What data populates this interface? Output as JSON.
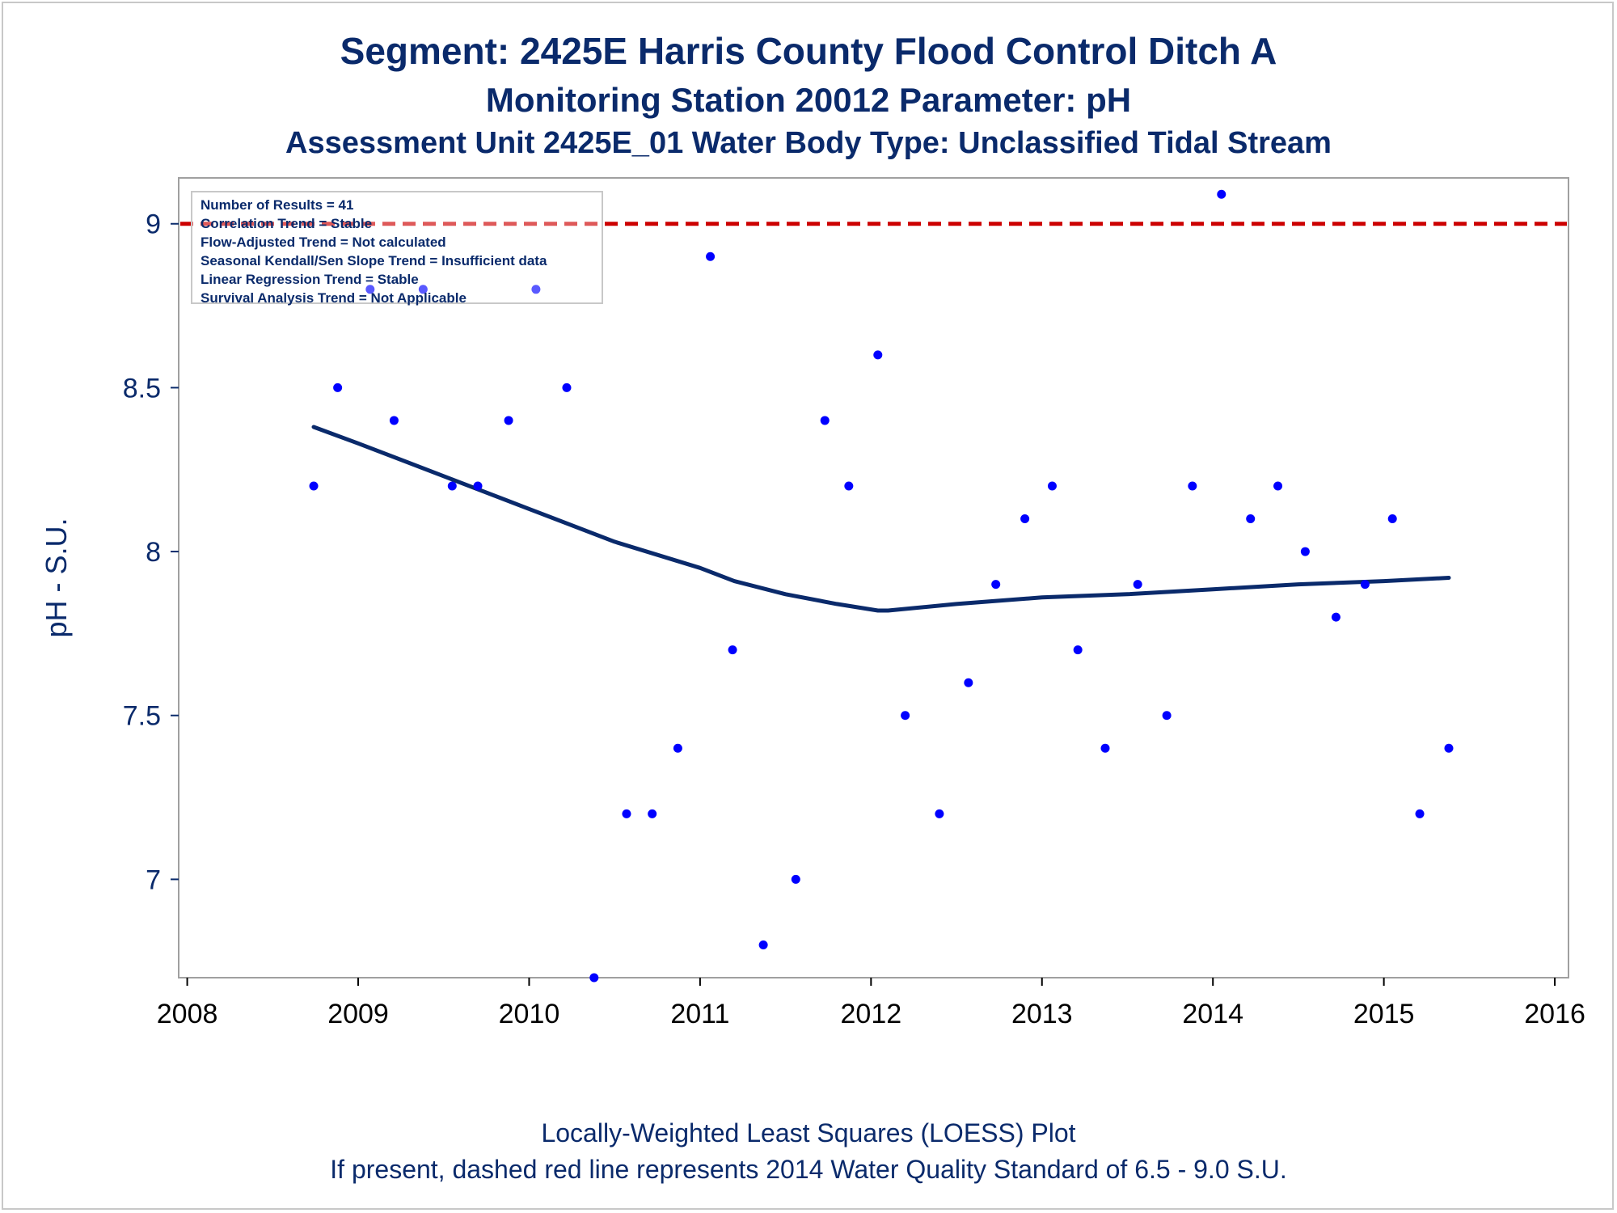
{
  "header": {
    "title": "Segment: 2425E  Harris County Flood Control Ditch A",
    "subtitle": "Monitoring Station 20012 Parameter: pH",
    "subtitle2": "Assessment Unit 2425E_01   Water Body Type: Unclassified Tidal Stream"
  },
  "footer": {
    "line1": "Locally-Weighted Least Squares (LOESS) Plot",
    "line2": "If present, dashed red line represents 2014 Water Quality Standard of 6.5 - 9.0 S.U."
  },
  "stats_box": [
    "Number of Results = 41",
    "Correlation Trend = Stable",
    "Flow-Adjusted Trend = Not calculated",
    "Seasonal Kendall/Sen Slope Trend = Insufficient data",
    "Linear Regression Trend = Stable",
    "Survival Analysis Trend = Not Applicable"
  ],
  "chart_data": {
    "type": "scatter",
    "ylabel": "pH - S.U.",
    "xlabel": "",
    "xlim": [
      2007.95,
      2016.08
    ],
    "ylim": [
      6.7,
      9.14
    ],
    "x_ticks": [
      2008,
      2009,
      2010,
      2011,
      2012,
      2013,
      2014,
      2015,
      2016
    ],
    "x_tick_labels": [
      "2008",
      "2009",
      "2010",
      "2011",
      "2012",
      "2013",
      "2014",
      "2015",
      "2016"
    ],
    "y_ticks": [
      7,
      7.5,
      8,
      8.5,
      9
    ],
    "y_tick_labels": [
      "7",
      "7.5",
      "8",
      "8.5",
      "9"
    ],
    "grid": false,
    "legend": "none",
    "standard_line": {
      "y": 9.0,
      "style": "dashed",
      "color": "#cc0000"
    },
    "colors": {
      "points": "#0000ff",
      "loess": "#0a2a6b",
      "axis": "#0a2a6b",
      "frame": "#a0a0a0"
    },
    "points": {
      "x": [
        2008.74,
        2008.88,
        2009.07,
        2009.21,
        2009.38,
        2009.55,
        2009.7,
        2009.88,
        2010.04,
        2010.22,
        2010.38,
        2010.57,
        2010.72,
        2010.87,
        2011.06,
        2011.19,
        2011.37,
        2011.56,
        2011.73,
        2011.87,
        2012.04,
        2012.2,
        2012.4,
        2012.57,
        2012.73,
        2012.9,
        2013.06,
        2013.21,
        2013.37,
        2013.56,
        2013.73,
        2013.88,
        2014.05,
        2014.22,
        2014.38,
        2014.54,
        2014.72,
        2014.89,
        2015.05,
        2015.21,
        2015.38
      ],
      "y": [
        8.2,
        8.5,
        8.8,
        8.4,
        8.8,
        8.2,
        8.2,
        8.4,
        8.8,
        8.5,
        6.7,
        7.2,
        7.2,
        7.4,
        8.9,
        7.7,
        6.8,
        7.0,
        8.4,
        8.2,
        8.6,
        7.5,
        7.2,
        7.6,
        7.9,
        8.1,
        8.2,
        7.7,
        7.4,
        7.9,
        7.5,
        8.2,
        9.09,
        8.1,
        8.2,
        8.0,
        7.8,
        7.9,
        8.1,
        7.2,
        7.4
      ]
    },
    "loess": {
      "x": [
        2008.74,
        2009.0,
        2009.5,
        2010.0,
        2010.5,
        2011.0,
        2011.2,
        2011.5,
        2011.8,
        2012.04,
        2012.1,
        2012.5,
        2013.0,
        2013.5,
        2014.0,
        2014.5,
        2015.0,
        2015.38
      ],
      "y": [
        8.38,
        8.33,
        8.23,
        8.13,
        8.03,
        7.95,
        7.91,
        7.87,
        7.84,
        7.82,
        7.82,
        7.84,
        7.86,
        7.87,
        7.885,
        7.9,
        7.91,
        7.92
      ]
    }
  }
}
